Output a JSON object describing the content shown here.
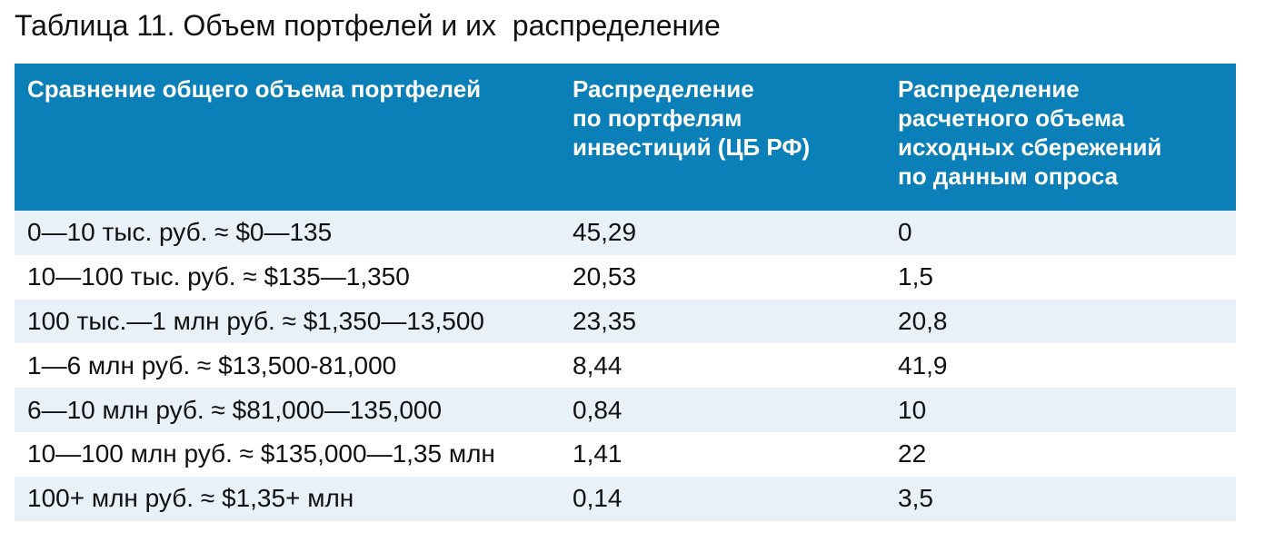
{
  "title": "Таблица 11. Объем портфелей и их  распределение",
  "colors": {
    "header_bg": "#0a7fb8",
    "header_text": "#ffffff",
    "stripe_bg": "#e8f1f8"
  },
  "table": {
    "headers": [
      "Сравнение общего объема портфелей",
      "Распределение\nпо портфелям\nинвестиций (ЦБ РФ)",
      "Распределение\nрасчетного объема\nисходных сбережений\nпо данным опроса"
    ],
    "rows": [
      [
        "0—10 тыс. руб. ≈ $0—135",
        "45,29",
        "0"
      ],
      [
        "10—100 тыс. руб. ≈ $135—1,350",
        "20,53",
        "1,5"
      ],
      [
        "100 тыс.—1 млн руб. ≈ $1,350—13,500",
        "23,35",
        "20,8"
      ],
      [
        "1—6 млн руб. ≈ $13,500-81,000",
        "8,44",
        "41,9"
      ],
      [
        "6—10 млн руб. ≈ $81,000—135,000",
        "0,84",
        "10"
      ],
      [
        "10—100 млн руб. ≈ $135,000—1,35 млн",
        "1,41",
        "22"
      ],
      [
        "100+ млн руб. ≈ $1,35+ млн",
        "0,14",
        "3,5"
      ]
    ]
  }
}
